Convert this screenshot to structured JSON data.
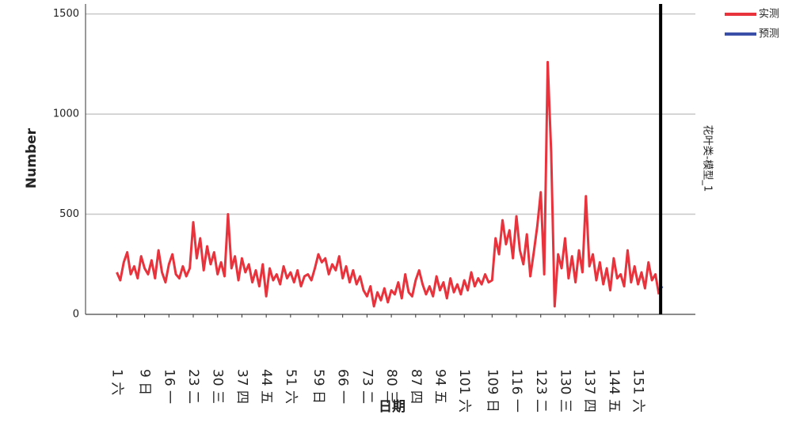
{
  "chart_data": {
    "type": "line",
    "y_label": "Number",
    "x_label": "日期",
    "panel_label": "花叶类-模型_1",
    "x": [
      1,
      2,
      3,
      4,
      5,
      6,
      7,
      8,
      9,
      10,
      11,
      12,
      13,
      14,
      15,
      16,
      17,
      18,
      19,
      20,
      21,
      22,
      23,
      24,
      25,
      26,
      27,
      28,
      29,
      30,
      31,
      32,
      33,
      34,
      35,
      36,
      37,
      38,
      39,
      40,
      41,
      42,
      43,
      44,
      45,
      46,
      47,
      48,
      49,
      50,
      51,
      52,
      53,
      54,
      55,
      56,
      57,
      58,
      59,
      60,
      61,
      62,
      63,
      64,
      65,
      66,
      67,
      68,
      69,
      70,
      71,
      72,
      73,
      74,
      75,
      76,
      77,
      78,
      79,
      80,
      81,
      82,
      83,
      84,
      85,
      86,
      87,
      88,
      89,
      90,
      91,
      92,
      93,
      94,
      95,
      96,
      97,
      98,
      99,
      100,
      101,
      102,
      103,
      104,
      105,
      106,
      107,
      108,
      109,
      110,
      111,
      112,
      113,
      114,
      115,
      116,
      117,
      118,
      119,
      120,
      121,
      122,
      123,
      124,
      125,
      126,
      127,
      128,
      129,
      130,
      131,
      132,
      133,
      134,
      135,
      136,
      137,
      138,
      139,
      140,
      141,
      142,
      143,
      144,
      145,
      146,
      147,
      148,
      149,
      150,
      151,
      152,
      153,
      154,
      155,
      156,
      157,
      158
    ],
    "series": [
      {
        "name": "实测",
        "color": "#e8323c",
        "values": [
          210,
          170,
          260,
          310,
          200,
          240,
          180,
          290,
          230,
          200,
          270,
          180,
          320,
          210,
          160,
          250,
          300,
          200,
          180,
          240,
          190,
          230,
          460,
          280,
          380,
          220,
          340,
          250,
          310,
          200,
          260,
          190,
          500,
          230,
          290,
          170,
          280,
          210,
          250,
          160,
          220,
          140,
          250,
          90,
          230,
          170,
          200,
          150,
          240,
          180,
          210,
          160,
          220,
          140,
          190,
          200,
          170,
          230,
          300,
          260,
          280,
          200,
          250,
          220,
          290,
          180,
          240,
          160,
          220,
          150,
          190,
          120,
          90,
          140,
          40,
          110,
          70,
          130,
          60,
          120,
          100,
          160,
          80,
          200,
          110,
          90,
          170,
          220,
          150,
          100,
          140,
          90,
          190,
          120,
          160,
          80,
          180,
          110,
          150,
          100,
          170,
          120,
          210,
          140,
          180,
          150,
          200,
          160,
          170,
          380,
          300,
          470,
          350,
          420,
          280,
          490,
          320,
          250,
          400,
          190,
          310,
          440,
          610,
          200,
          1260,
          810,
          40,
          300,
          230,
          380,
          180,
          290,
          160,
          320,
          210,
          590,
          240,
          300,
          170,
          260,
          150,
          230,
          120,
          280,
          180,
          200,
          140,
          320,
          160,
          240,
          150,
          210,
          130,
          260,
          170,
          200,
          100,
          null
        ]
      },
      {
        "name": "预测",
        "color": "#3a4fa8",
        "values": [
          null,
          null,
          null,
          null,
          null,
          null,
          null,
          null,
          null,
          null,
          null,
          null,
          null,
          null,
          null,
          null,
          null,
          null,
          null,
          null,
          null,
          null,
          null,
          null,
          null,
          null,
          null,
          null,
          null,
          null,
          null,
          null,
          null,
          null,
          null,
          null,
          null,
          null,
          null,
          null,
          null,
          null,
          null,
          null,
          null,
          null,
          null,
          null,
          null,
          null,
          null,
          null,
          null,
          null,
          null,
          null,
          null,
          null,
          null,
          null,
          null,
          null,
          null,
          null,
          null,
          null,
          null,
          null,
          null,
          null,
          null,
          null,
          null,
          null,
          null,
          null,
          null,
          null,
          null,
          null,
          null,
          null,
          null,
          null,
          null,
          null,
          null,
          null,
          null,
          null,
          null,
          null,
          null,
          null,
          null,
          null,
          null,
          null,
          null,
          null,
          null,
          null,
          null,
          null,
          null,
          null,
          null,
          null,
          null,
          null,
          null,
          null,
          null,
          null,
          null,
          null,
          null,
          null,
          null,
          null,
          null,
          null,
          null,
          null,
          null,
          null,
          null,
          null,
          null,
          null,
          null,
          null,
          null,
          null,
          null,
          null,
          null,
          null,
          null,
          null,
          null,
          null,
          null,
          null,
          null,
          null,
          null,
          null,
          null,
          null,
          null,
          null,
          null,
          null,
          null,
          null,
          120,
          140
        ]
      }
    ],
    "reference_line": 157.5,
    "xlim": [
      -8,
      167.5
    ],
    "ylim": [
      0,
      1550
    ],
    "yticks": [
      0,
      500,
      1000,
      1500
    ],
    "xticks": [
      {
        "value": 1,
        "label": "1 六"
      },
      {
        "value": 9,
        "label": "9 日"
      },
      {
        "value": 16,
        "label": "16 一"
      },
      {
        "value": 23,
        "label": "23 二"
      },
      {
        "value": 30,
        "label": "30 三"
      },
      {
        "value": 37,
        "label": "37 四"
      },
      {
        "value": 44,
        "label": "44 五"
      },
      {
        "value": 51,
        "label": "51 六"
      },
      {
        "value": 59,
        "label": "59 日"
      },
      {
        "value": 66,
        "label": "66 一"
      },
      {
        "value": 73,
        "label": "73 二"
      },
      {
        "value": 80,
        "label": "80 三"
      },
      {
        "value": 87,
        "label": "87 四"
      },
      {
        "value": 94,
        "label": "94 五"
      },
      {
        "value": 101,
        "label": "101 六"
      },
      {
        "value": 109,
        "label": "109 日"
      },
      {
        "value": 116,
        "label": "116 一"
      },
      {
        "value": 123,
        "label": "123 二"
      },
      {
        "value": 130,
        "label": "130 三"
      },
      {
        "value": 137,
        "label": "137 四"
      },
      {
        "value": 144,
        "label": "144 五"
      },
      {
        "value": 151,
        "label": "151 六"
      }
    ],
    "grid": true,
    "legend": "top-right"
  }
}
